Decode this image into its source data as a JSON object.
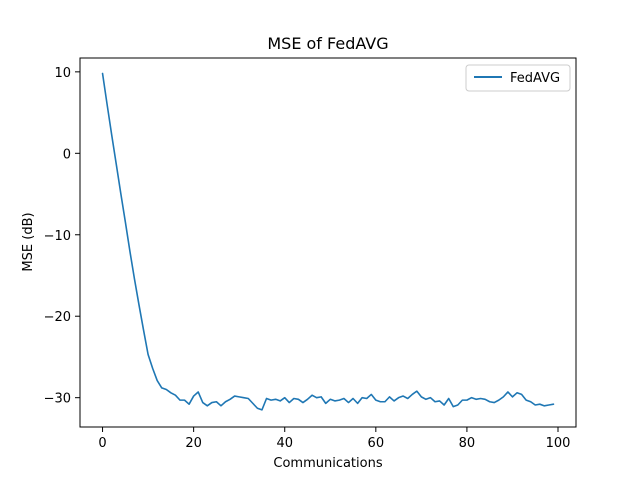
{
  "chart_data": {
    "type": "line",
    "title": "MSE of FedAVG",
    "xlabel": "Communications",
    "ylabel": "MSE (dB)",
    "xlim": [
      -4.95,
      103.95
    ],
    "ylim": [
      -33.6,
      11.7
    ],
    "x_ticks": [
      0,
      20,
      40,
      60,
      80,
      100
    ],
    "y_ticks": [
      10,
      0,
      -10,
      -20,
      -30
    ],
    "x_tick_labels": [
      "0",
      "20",
      "40",
      "60",
      "80",
      "100"
    ],
    "y_tick_labels": [
      "10",
      "0",
      "−10",
      "−20",
      "−30"
    ],
    "grid": false,
    "legend_position": "top-right",
    "series": [
      {
        "name": "FedAVG",
        "color": "#1f77b4",
        "x": [
          0,
          1,
          2,
          3,
          4,
          5,
          6,
          7,
          8,
          9,
          10,
          11,
          12,
          13,
          14,
          15,
          16,
          17,
          18,
          19,
          20,
          21,
          22,
          23,
          24,
          25,
          26,
          27,
          28,
          29,
          30,
          31,
          32,
          33,
          34,
          35,
          36,
          37,
          38,
          39,
          40,
          41,
          42,
          43,
          44,
          45,
          46,
          47,
          48,
          49,
          50,
          51,
          52,
          53,
          54,
          55,
          56,
          57,
          58,
          59,
          60,
          61,
          62,
          63,
          64,
          65,
          66,
          67,
          68,
          69,
          70,
          71,
          72,
          73,
          74,
          75,
          76,
          77,
          78,
          79,
          80,
          81,
          82,
          83,
          84,
          85,
          86,
          87,
          88,
          89,
          90,
          91,
          92,
          93,
          94,
          95,
          96,
          97,
          98,
          99
        ],
        "values": [
          9.8,
          6.0,
          2.3,
          -1.3,
          -4.9,
          -8.4,
          -12.0,
          -15.4,
          -18.6,
          -21.7,
          -24.7,
          -26.4,
          -27.9,
          -28.8,
          -29.0,
          -29.4,
          -29.7,
          -30.3,
          -30.3,
          -30.8,
          -29.8,
          -29.3,
          -30.6,
          -31.0,
          -30.6,
          -30.5,
          -31.0,
          -30.5,
          -30.2,
          -29.8,
          -29.9,
          -30.0,
          -30.1,
          -30.7,
          -31.3,
          -31.5,
          -30.1,
          -30.3,
          -30.2,
          -30.4,
          -30.0,
          -30.6,
          -30.1,
          -30.2,
          -30.6,
          -30.2,
          -29.7,
          -30.0,
          -29.9,
          -30.7,
          -30.2,
          -30.4,
          -30.3,
          -30.1,
          -30.6,
          -30.1,
          -30.7,
          -30.0,
          -30.1,
          -29.6,
          -30.3,
          -30.5,
          -30.5,
          -29.9,
          -30.4,
          -30.0,
          -29.8,
          -30.1,
          -29.6,
          -29.2,
          -29.9,
          -30.2,
          -30.0,
          -30.5,
          -30.4,
          -30.9,
          -30.1,
          -31.1,
          -30.9,
          -30.3,
          -30.3,
          -30.0,
          -30.2,
          -30.1,
          -30.2,
          -30.5,
          -30.6,
          -30.3,
          -29.9,
          -29.3,
          -29.9,
          -29.4,
          -29.6,
          -30.3,
          -30.5,
          -30.9,
          -30.8,
          -31.0,
          -30.9,
          -30.8
        ]
      }
    ]
  }
}
